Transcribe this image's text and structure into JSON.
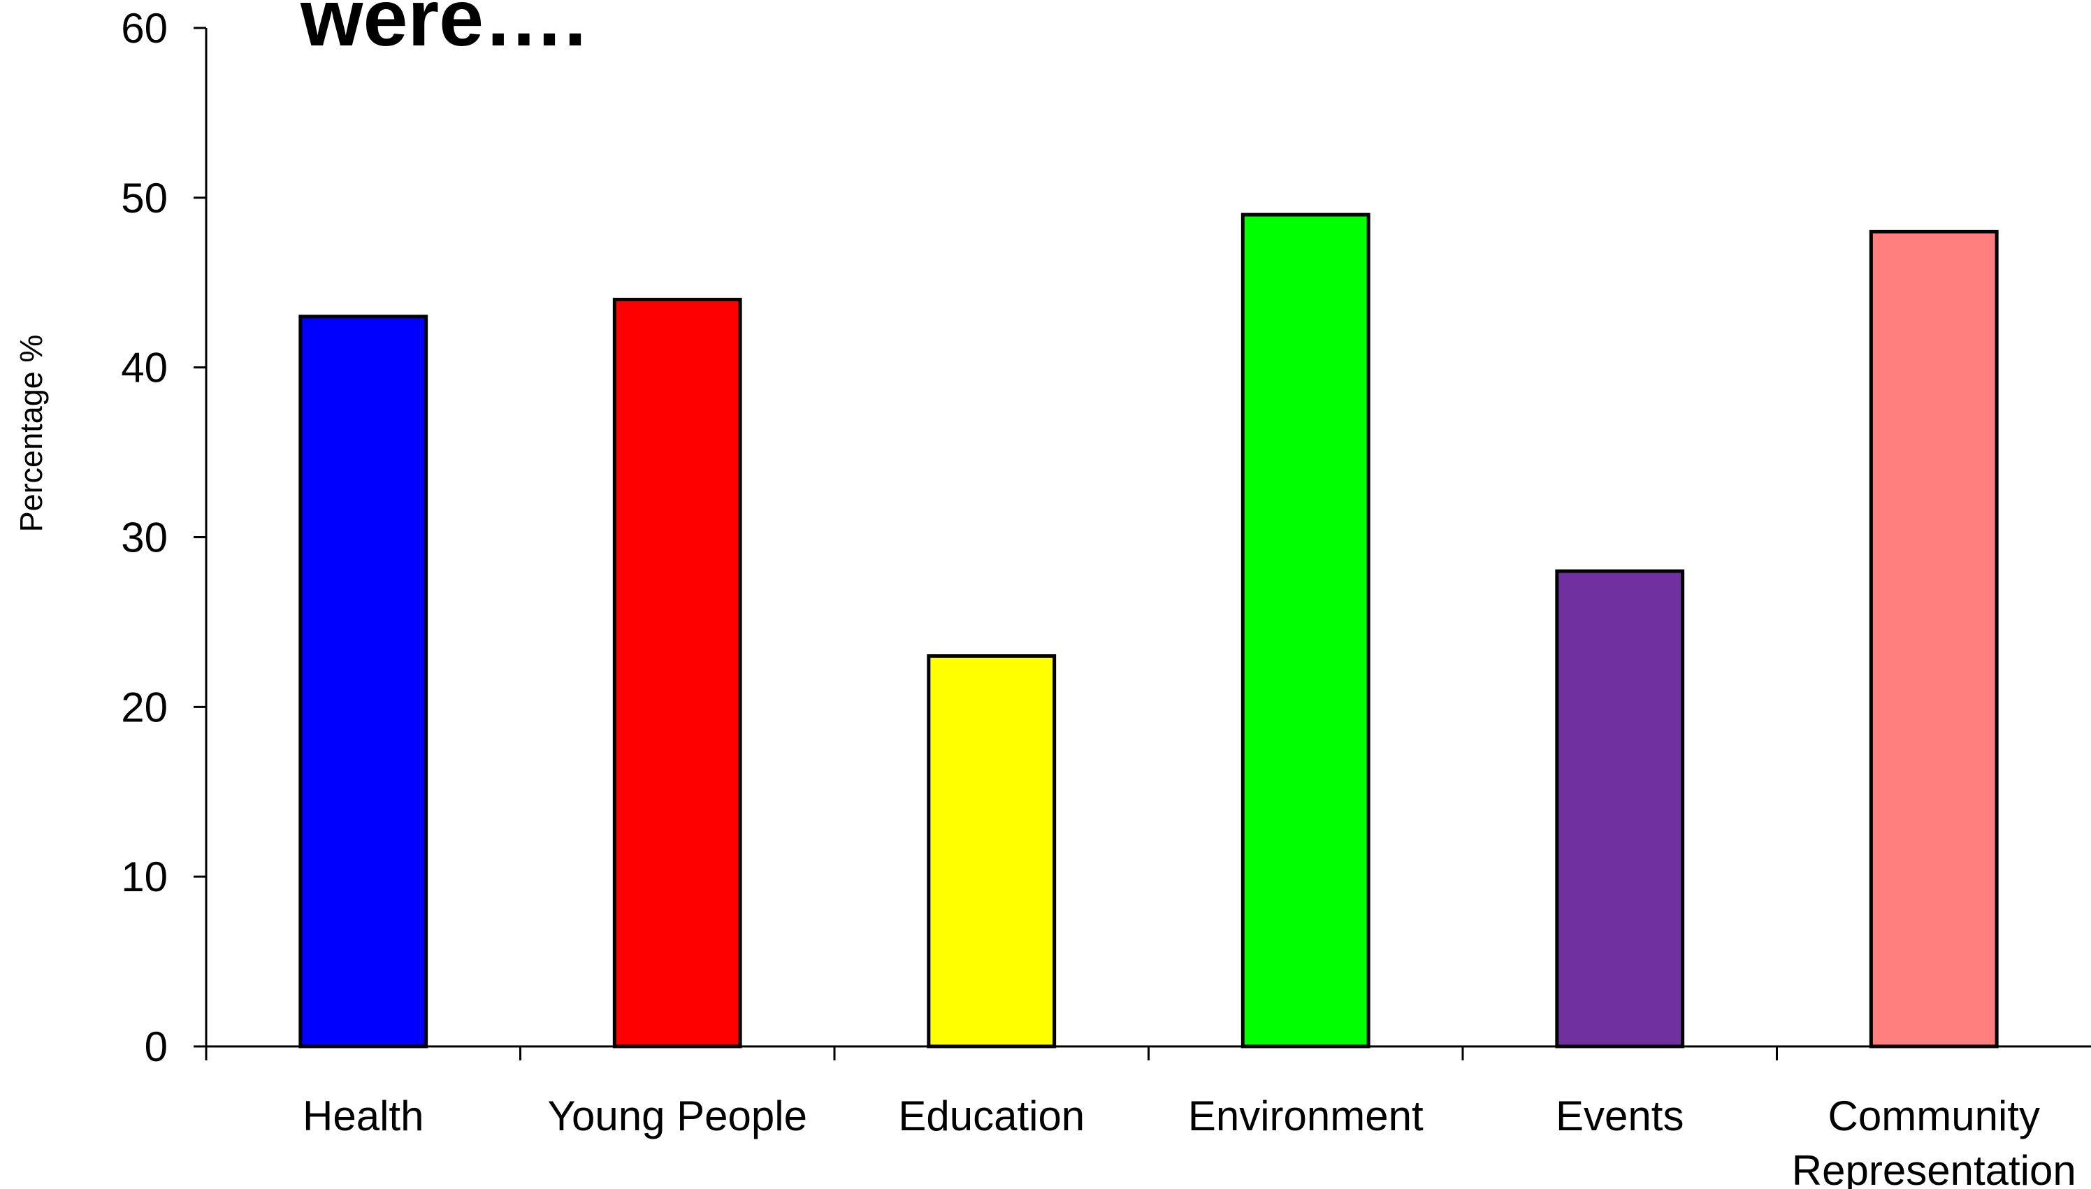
{
  "chart_data": {
    "type": "bar",
    "title": "were….",
    "xlabel": "",
    "ylabel": "Percentage %",
    "ylim": [
      0,
      60
    ],
    "yticks": [
      0,
      10,
      20,
      30,
      40,
      50,
      60
    ],
    "grid": false,
    "legend": "none",
    "categories": [
      [
        "Health"
      ],
      [
        "Young People"
      ],
      [
        "Education"
      ],
      [
        "Environment"
      ],
      [
        "Events"
      ],
      [
        "Community",
        "Representation"
      ]
    ],
    "values": [
      43,
      44,
      23,
      49,
      28,
      48
    ],
    "colors": [
      "#0000FF",
      "#FF0000",
      "#FFFF00",
      "#00FF00",
      "#7030A0",
      "#FF7F7F"
    ]
  }
}
